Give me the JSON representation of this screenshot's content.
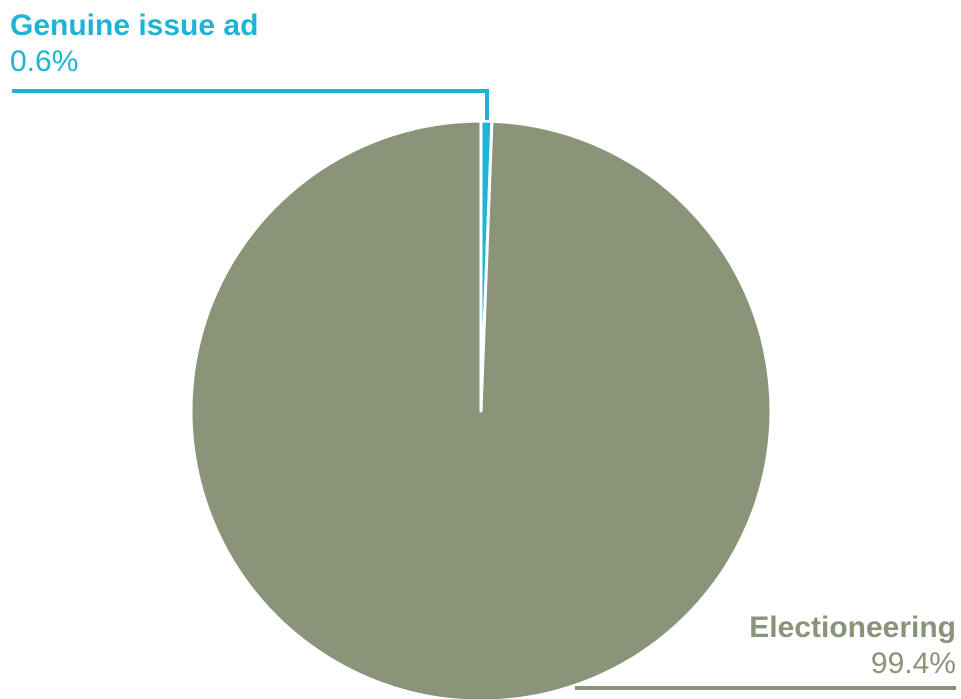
{
  "chart_data": {
    "type": "pie",
    "categories": [
      "Genuine issue ad",
      "Electioneering"
    ],
    "values": [
      0.6,
      99.4
    ],
    "value_labels": [
      "0.6%",
      "99.4%"
    ],
    "colors": [
      "#1fb4d6",
      "#8a9478"
    ],
    "title": "",
    "legend": "none"
  }
}
